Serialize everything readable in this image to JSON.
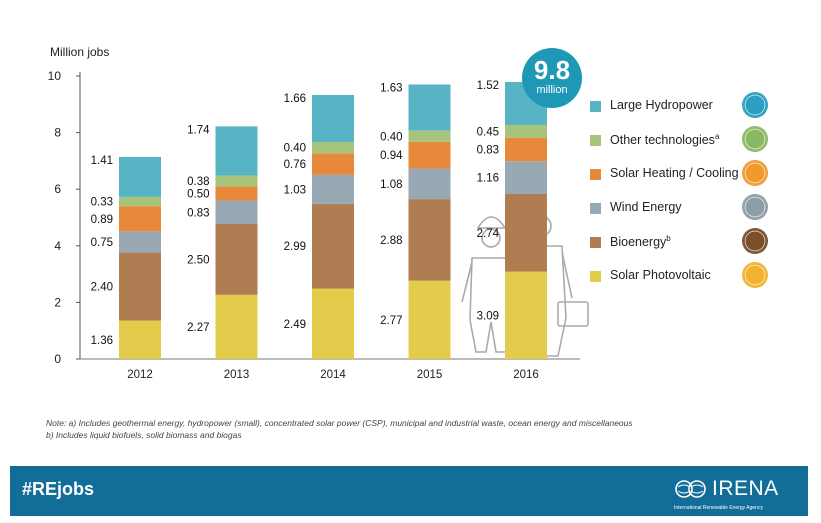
{
  "chart_data": {
    "type": "bar",
    "stacked": true,
    "ylabel": "Million jobs",
    "ylim": [
      0,
      10
    ],
    "yticks": [
      0,
      2,
      4,
      6,
      8,
      10
    ],
    "categories": [
      "2012",
      "2013",
      "2014",
      "2015",
      "2016"
    ],
    "series": [
      {
        "name": "Solar Photovoltaic",
        "color": "#e3cc4c",
        "values": [
          1.36,
          2.27,
          2.49,
          2.77,
          3.09
        ],
        "labels": [
          "1.36",
          "2.27",
          "2.49",
          "2.77",
          "3.09"
        ]
      },
      {
        "name": "Bioenergy",
        "name_sup": "b",
        "color": "#b07c52",
        "values": [
          2.4,
          2.5,
          2.99,
          2.88,
          2.74
        ],
        "labels": [
          "2.40",
          "2.50",
          "2.99",
          "2.88",
          "2.74"
        ]
      },
      {
        "name": "Wind Energy",
        "color": "#98a9b3",
        "values": [
          0.75,
          0.83,
          1.03,
          1.08,
          1.16
        ],
        "labels": [
          "0.75",
          "0.83",
          "1.03",
          "1.08",
          "1.16"
        ]
      },
      {
        "name": "Solar Heating / Cooling",
        "color": "#e7893a",
        "values": [
          0.89,
          0.5,
          0.76,
          0.94,
          0.83
        ],
        "labels": [
          "0.89",
          "0.50",
          "0.76",
          "0.94",
          "0.83"
        ]
      },
      {
        "name": "Other technologies",
        "name_sup": "a",
        "color": "#a7c57a",
        "values": [
          0.33,
          0.38,
          0.4,
          0.4,
          0.45
        ],
        "labels": [
          "0.33",
          "0.38",
          "0.40",
          "0.40",
          "0.45"
        ]
      },
      {
        "name": "Large Hydropower",
        "color": "#57b4c4",
        "values": [
          1.41,
          1.74,
          1.66,
          1.63,
          1.52
        ],
        "labels": [
          "1.41",
          "1.74",
          "1.66",
          "1.63",
          "1.52"
        ]
      }
    ],
    "legend_order": [
      5,
      4,
      3,
      2,
      1,
      0
    ],
    "legend_icon_colors": [
      "#2a9fc1",
      "#8ab862",
      "#f09a2d",
      "#8d9ea9",
      "#7a4f2c",
      "#f2b232"
    ],
    "legend_placement": "right",
    "grid": false,
    "annotation": {
      "value": "9.8",
      "unit": "million"
    }
  },
  "notes": [
    "Note: a) Includes geothermal energy, hydropower (small), concentrated solar power (CSP), municipal and industrial waste, ocean energy and miscellaneous",
    "b) Includes liquid biofuels, solid biomass and biogas"
  ],
  "footer": {
    "hashtag": "#REjobs",
    "logo_text": "IRENA",
    "logo_sub": "International Renewable Energy Agency",
    "background": "#126d98"
  }
}
